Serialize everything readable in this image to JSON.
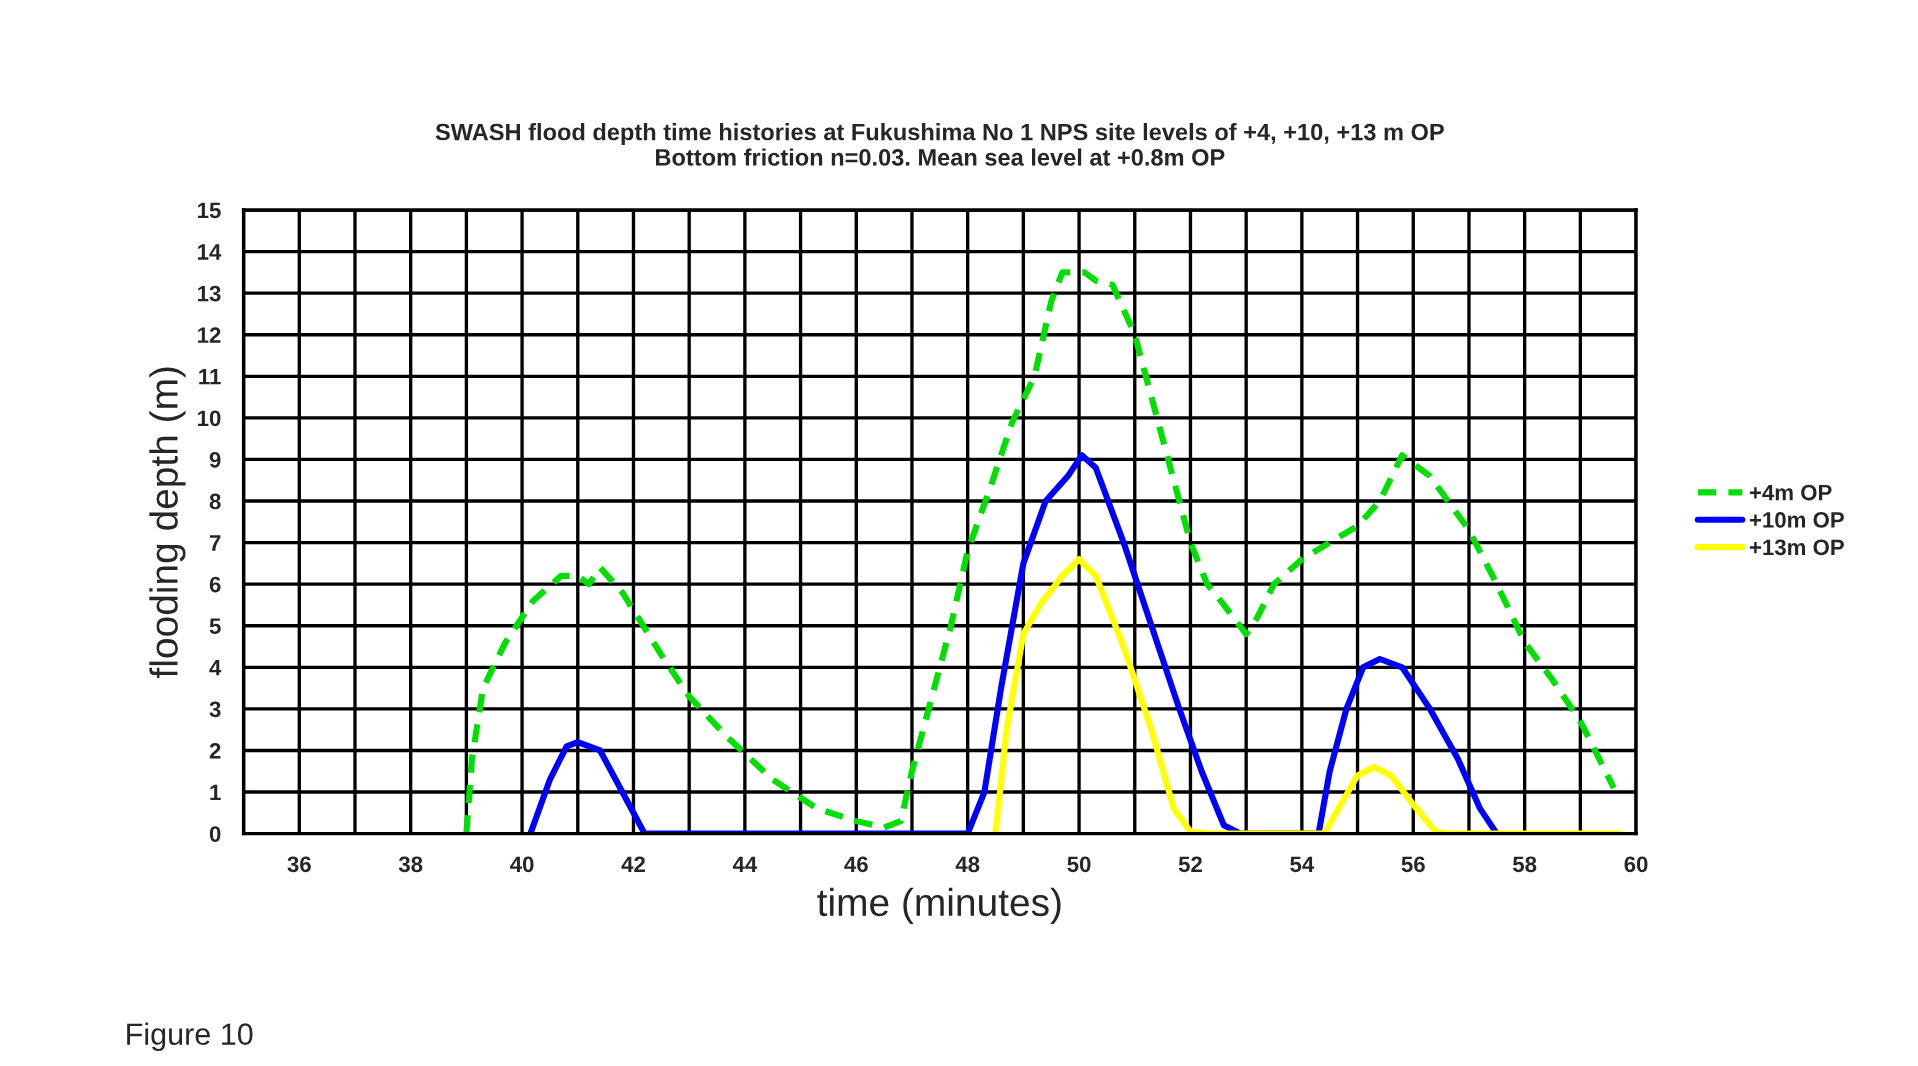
{
  "chart_data": {
    "type": "line",
    "title": "SWASH flood depth time histories at Fukushima No 1 NPS site levels of +4, +10, +13 m OP\nBottom friction n=0.03. Mean sea level at +0.8m OP",
    "xlabel": "time (minutes)",
    "ylabel": "flooding depth (m)",
    "annotations": [
      "Figure 10"
    ],
    "xlim": [
      35,
      60
    ],
    "ylim": [
      0,
      15
    ],
    "xticks": [
      {
        "value": 35,
        "label": null
      },
      36,
      {
        "value": 37,
        "label": null
      },
      38,
      {
        "value": 39,
        "label": null
      },
      40,
      {
        "value": 41,
        "label": null
      },
      42,
      {
        "value": 43,
        "label": null
      },
      44,
      {
        "value": 45,
        "label": null
      },
      46,
      {
        "value": 47,
        "label": null
      },
      48,
      {
        "value": 49,
        "label": null
      },
      50,
      {
        "value": 51,
        "label": null
      },
      52,
      {
        "value": 53,
        "label": null
      },
      54,
      {
        "value": 55,
        "label": null
      },
      56,
      {
        "value": 57,
        "label": null
      },
      58,
      {
        "value": 59,
        "label": null
      },
      60
    ],
    "yticks": [
      0,
      1,
      2,
      3,
      4,
      5,
      6,
      7,
      8,
      9,
      10,
      11,
      12,
      13,
      14,
      15
    ],
    "grid": true,
    "legend": "right",
    "series": [
      {
        "name": "+4m OP",
        "color": "#00e000",
        "line_style": "dashed",
        "x": [
          39,
          39.1,
          39.3,
          39.7,
          40.2,
          40.7,
          41,
          41.2,
          41.4,
          41.8,
          42.5,
          43,
          43.7,
          44.5,
          45.3,
          46,
          46.5,
          46.8,
          47,
          47.3,
          47.7,
          48,
          48.4,
          48.8,
          49.2,
          49.5,
          49.7,
          50.1,
          50.3,
          50.6,
          51,
          51.4,
          51.7,
          52,
          52.3,
          52.6,
          53,
          53.2,
          53.5,
          54,
          54.5,
          55,
          55.4,
          55.8,
          56.3,
          57,
          57.5,
          58,
          58.5,
          59,
          59.6
        ],
        "values": [
          0,
          1.8,
          3.5,
          4.6,
          5.6,
          6.2,
          6.2,
          6.0,
          6.4,
          5.8,
          4.3,
          3.3,
          2.3,
          1.3,
          0.6,
          0.3,
          0.15,
          0.3,
          1.5,
          3.0,
          5.0,
          6.8,
          8.3,
          9.9,
          11.0,
          12.8,
          13.5,
          13.5,
          13.3,
          13.2,
          12.0,
          10.0,
          8.5,
          7.0,
          6.0,
          5.5,
          4.8,
          5.2,
          6.0,
          6.6,
          7.0,
          7.4,
          8.0,
          9.1,
          8.6,
          7.3,
          6.0,
          4.6,
          3.7,
          2.7,
          1.1
        ]
      },
      {
        "name": "+10m OP",
        "color": "#0000ff",
        "line_style": "solid",
        "x": [
          40.15,
          40.5,
          40.8,
          41.0,
          41.4,
          41.8,
          42.2,
          48,
          48.3,
          48.6,
          49,
          49.4,
          49.8,
          50.05,
          50.3,
          50.8,
          51.3,
          51.8,
          52.2,
          52.6,
          52.9,
          54.3,
          54.5,
          54.8,
          55.1,
          55.4,
          55.8,
          56.3,
          56.8,
          57.2,
          57.5
        ],
        "values": [
          0,
          1.3,
          2.1,
          2.2,
          2.0,
          1.0,
          0,
          0,
          1.0,
          3.5,
          6.5,
          8.0,
          8.6,
          9.1,
          8.8,
          7.0,
          5.0,
          3.0,
          1.5,
          0.2,
          0,
          0,
          1.5,
          3.0,
          4.0,
          4.2,
          4.0,
          3.0,
          1.8,
          0.6,
          0
        ]
      },
      {
        "name": "+13m OP",
        "color": "#ffff00",
        "line_style": "solid",
        "x": [
          48.5,
          48.7,
          49.0,
          49.3,
          49.7,
          50.0,
          50.3,
          50.8,
          51.3,
          51.7,
          52.0,
          52.3,
          54.4,
          54.7,
          55.0,
          55.3,
          55.6,
          56.0,
          56.4,
          56.6,
          59.7
        ],
        "values": [
          0,
          2.5,
          4.8,
          5.5,
          6.2,
          6.6,
          6.2,
          4.5,
          2.5,
          0.6,
          0.05,
          0,
          0,
          0.7,
          1.4,
          1.6,
          1.4,
          0.7,
          0.05,
          0,
          0
        ]
      }
    ]
  }
}
